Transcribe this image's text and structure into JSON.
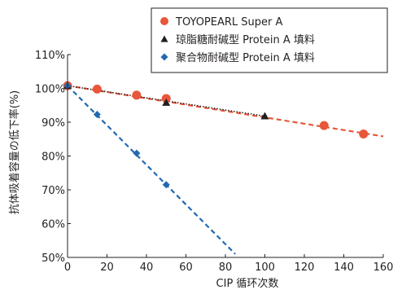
{
  "chart_data": {
    "type": "scatter",
    "xlabel": "CIP 循环次数",
    "ylabel": "抗体吸着容量の低下率(%)",
    "xlim": [
      0,
      160
    ],
    "ylim": [
      50,
      110
    ],
    "xticks": [
      0,
      20,
      40,
      60,
      80,
      100,
      120,
      140,
      160
    ],
    "yticks": [
      50,
      60,
      70,
      80,
      90,
      100,
      110
    ],
    "ytick_labels": [
      "50%",
      "60%",
      "70%",
      "80%",
      "90%",
      "100%",
      "110%"
    ],
    "grid": false,
    "legend": "top-right",
    "series": [
      {
        "name": "TOYOPEARL Super A",
        "marker": "circle",
        "color": "#e8573a",
        "x": [
          0,
          15,
          35,
          50,
          130,
          150
        ],
        "y": [
          100.8,
          99.8,
          98.0,
          97.0,
          89.0,
          86.5
        ],
        "trendline": {
          "x": [
            0,
            160
          ],
          "y": [
            100.8,
            85.8
          ],
          "style": "dashed",
          "color": "#e8573a"
        }
      },
      {
        "name": "琼脂糖耐碱型 Protein A 填料",
        "marker": "triangle",
        "color": "#231f20",
        "x": [
          0,
          50,
          100
        ],
        "y": [
          100.8,
          95.8,
          91.8
        ],
        "trendline": {
          "x": [
            0,
            100
          ],
          "y": [
            100.8,
            91.8
          ],
          "style": "dotted",
          "color": "#231f20"
        }
      },
      {
        "name": "聚合物耐碱型 Protein A 填料",
        "marker": "diamond",
        "color": "#2269b0",
        "x": [
          0,
          15,
          35,
          50
        ],
        "y": [
          100.8,
          92.3,
          80.8,
          71.5
        ],
        "trendline": {
          "x": [
            0,
            85
          ],
          "y": [
            100.8,
            51.0
          ],
          "style": "dashed",
          "color": "#2269b0"
        }
      }
    ]
  }
}
